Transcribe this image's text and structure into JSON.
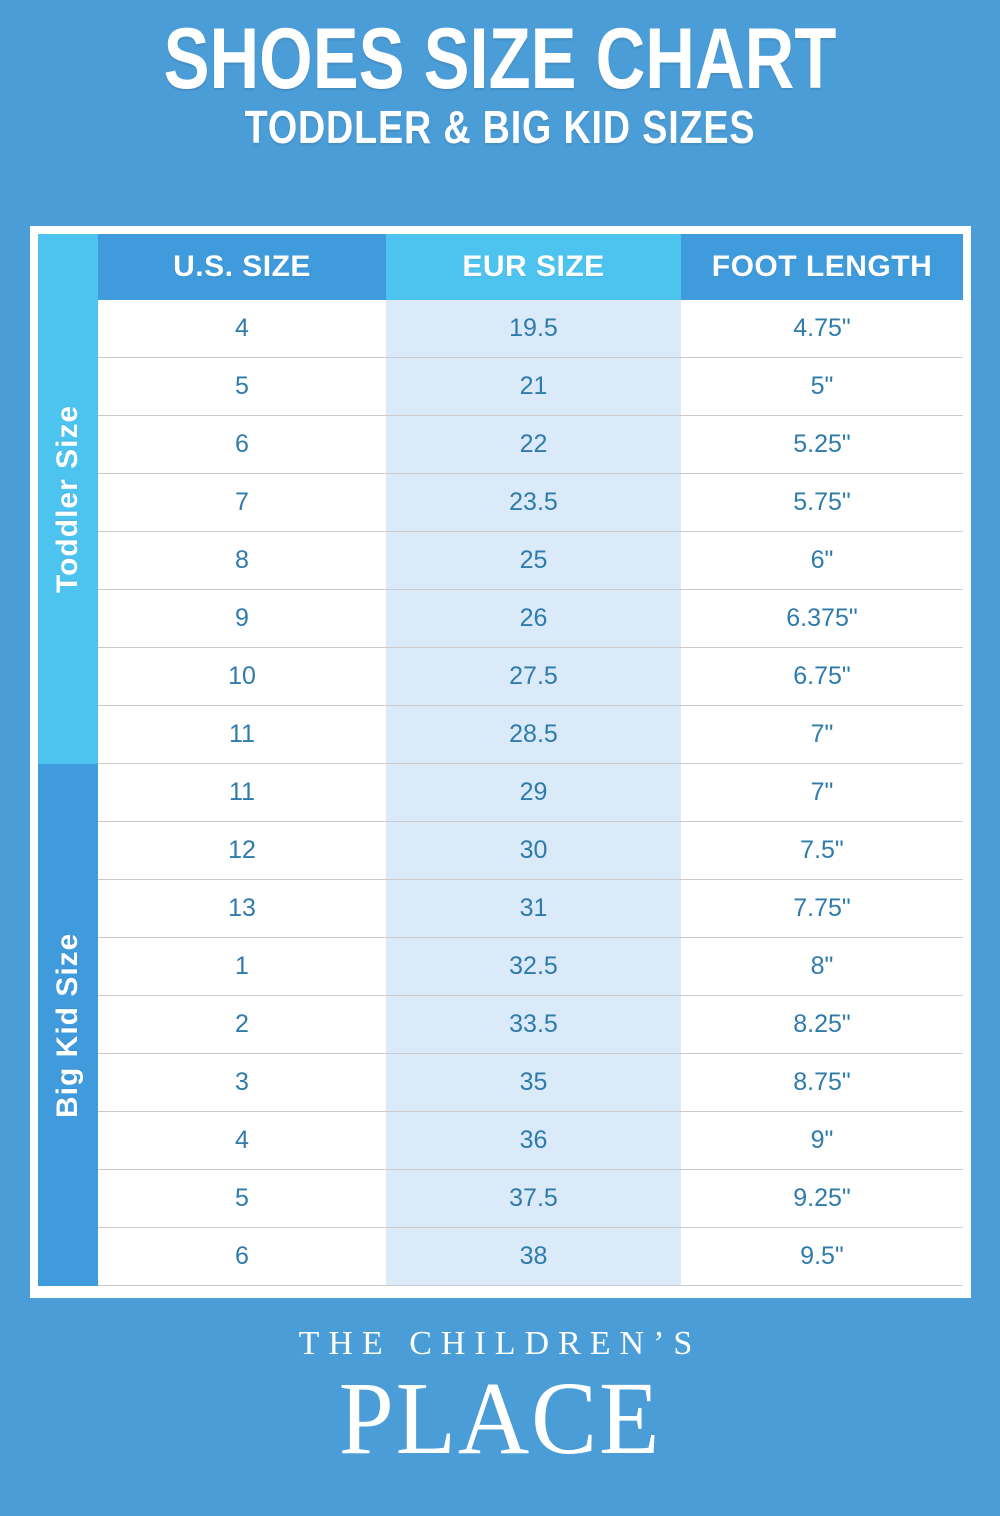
{
  "header": {
    "title": "SHOES SIZE CHART",
    "subtitle": "TODDLER & BIG KID SIZES"
  },
  "table": {
    "headers": [
      "U.S. SIZE",
      "EUR SIZE",
      "FOOT LENGTH"
    ],
    "sections": [
      {
        "label": "Toddler Size",
        "rows": [
          [
            "4",
            "19.5",
            "4.75\""
          ],
          [
            "5",
            "21",
            "5\""
          ],
          [
            "6",
            "22",
            "5.25\""
          ],
          [
            "7",
            "23.5",
            "5.75\""
          ],
          [
            "8",
            "25",
            "6\""
          ],
          [
            "9",
            "26",
            "6.375\""
          ],
          [
            "10",
            "27.5",
            "6.75\""
          ],
          [
            "11",
            "28.5",
            "7\""
          ]
        ]
      },
      {
        "label": "Big Kid Size",
        "rows": [
          [
            "11",
            "29",
            "7\""
          ],
          [
            "12",
            "30",
            "7.5\""
          ],
          [
            "13",
            "31",
            "7.75\""
          ],
          [
            "1",
            "32.5",
            "8\""
          ],
          [
            "2",
            "33.5",
            "8.25\""
          ],
          [
            "3",
            "35",
            "8.75\""
          ],
          [
            "4",
            "36",
            "9\""
          ],
          [
            "5",
            "37.5",
            "9.25\""
          ],
          [
            "6",
            "38",
            "9.5\""
          ]
        ]
      }
    ]
  },
  "footer": {
    "brand_top": "THE CHILDREN’S",
    "brand_bottom": "PLACE"
  },
  "colors": {
    "background": "#4B9DD8",
    "header_cell_dark": "#3F9BDB",
    "header_cell_cyan": "#4DC3EF",
    "toddler_label_bg": "#4DC3EF",
    "bigkid_label_bg": "#3F9BDB",
    "eur_column_bg": "#DAEAF8",
    "cell_text": "#2F7BAB",
    "row_divider": "#CBCBCB",
    "text_white": "#FFFFFF"
  },
  "chart_data": {
    "type": "table",
    "title": "SHOES SIZE CHART — TODDLER & BIG KID SIZES",
    "columns": [
      "U.S. SIZE",
      "EUR SIZE",
      "FOOT LENGTH"
    ],
    "sections": [
      {
        "name": "Toddler Size",
        "rows": [
          {
            "us_size": "4",
            "eur_size": "19.5",
            "foot_length": "4.75\""
          },
          {
            "us_size": "5",
            "eur_size": "21",
            "foot_length": "5\""
          },
          {
            "us_size": "6",
            "eur_size": "22",
            "foot_length": "5.25\""
          },
          {
            "us_size": "7",
            "eur_size": "23.5",
            "foot_length": "5.75\""
          },
          {
            "us_size": "8",
            "eur_size": "25",
            "foot_length": "6\""
          },
          {
            "us_size": "9",
            "eur_size": "26",
            "foot_length": "6.375\""
          },
          {
            "us_size": "10",
            "eur_size": "27.5",
            "foot_length": "6.75\""
          },
          {
            "us_size": "11",
            "eur_size": "28.5",
            "foot_length": "7\""
          }
        ]
      },
      {
        "name": "Big Kid Size",
        "rows": [
          {
            "us_size": "11",
            "eur_size": "29",
            "foot_length": "7\""
          },
          {
            "us_size": "12",
            "eur_size": "30",
            "foot_length": "7.5\""
          },
          {
            "us_size": "13",
            "eur_size": "31",
            "foot_length": "7.75\""
          },
          {
            "us_size": "1",
            "eur_size": "32.5",
            "foot_length": "8\""
          },
          {
            "us_size": "2",
            "eur_size": "33.5",
            "foot_length": "8.25\""
          },
          {
            "us_size": "3",
            "eur_size": "35",
            "foot_length": "8.75\""
          },
          {
            "us_size": "4",
            "eur_size": "36",
            "foot_length": "9\""
          },
          {
            "us_size": "5",
            "eur_size": "37.5",
            "foot_length": "9.25\""
          },
          {
            "us_size": "6",
            "eur_size": "38",
            "foot_length": "9.5\""
          }
        ]
      }
    ]
  }
}
